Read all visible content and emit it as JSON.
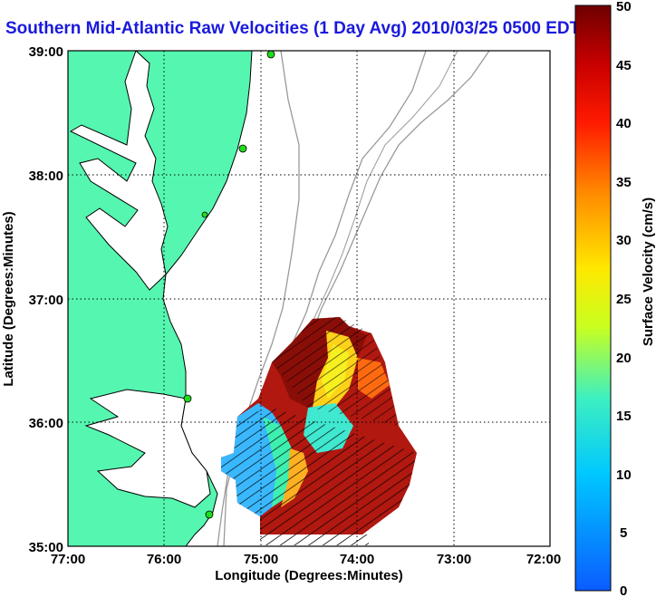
{
  "title": "Southern Mid-Atlantic Raw Velocities (1 Day Avg) 2010/03/25 0500 EDT",
  "x_axis": {
    "label": "Longitude (Degrees:Minutes)",
    "ticks": [
      "77:00",
      "76:00",
      "75:00",
      "74:00",
      "73:00",
      "72:00"
    ]
  },
  "y_axis": {
    "label": "Latitude (Degrees:Minutes)",
    "ticks": [
      "39:00",
      "38:00",
      "37:00",
      "36:00",
      "35:00"
    ]
  },
  "colorbar": {
    "label": "Surface Velocity (cm/s)",
    "ticks": [
      "50",
      "45",
      "40",
      "35",
      "30",
      "25",
      "20",
      "15",
      "10",
      "5",
      "0"
    ],
    "min": 0,
    "max": 50
  },
  "colors": {
    "land": "#55f7b0",
    "bathymetry": "#9a9a9a",
    "title": "#1a1adc",
    "station": "#1fdc1f"
  },
  "grid": "dotted"
}
